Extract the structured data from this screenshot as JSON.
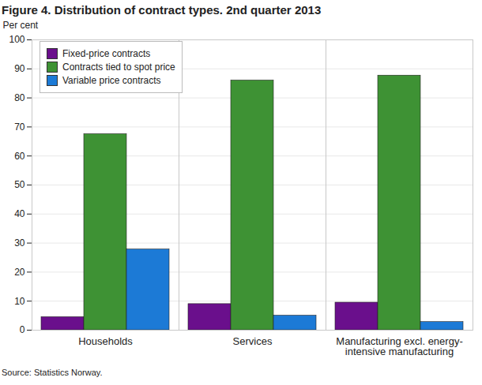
{
  "chart_data": {
    "type": "bar",
    "title": "Figure 4. Distribution of contract types. 2nd quarter 2013",
    "y_label": "Per cent",
    "source": "Source: Statistics Norway.",
    "categories": [
      "Households",
      "Services",
      "Manufacturing excl. energy-intensive manufacturing"
    ],
    "series": [
      {
        "name": "Fixed-price contracts",
        "color": "#6a0f8c",
        "values": [
          4.5,
          9,
          9.5
        ]
      },
      {
        "name": "Contracts tied to spot price",
        "color": "#3e9234",
        "values": [
          67.5,
          86,
          87.7
        ]
      },
      {
        "name": "Variable price contracts",
        "color": "#1c7ad6",
        "values": [
          27.8,
          5,
          2.8
        ]
      }
    ],
    "ylim": [
      0,
      100
    ],
    "yticks": [
      0,
      10,
      20,
      30,
      40,
      50,
      60,
      70,
      80,
      90,
      100
    ],
    "grid": true,
    "legend": "top-left"
  }
}
